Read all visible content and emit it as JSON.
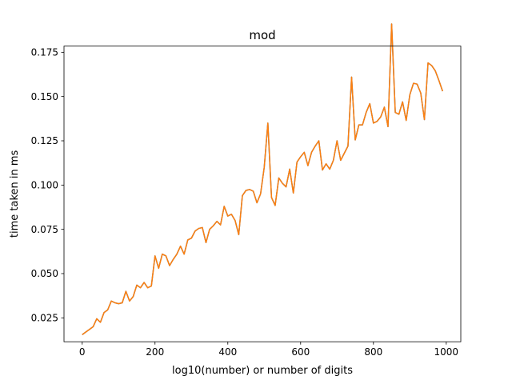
{
  "chart_data": {
    "type": "line",
    "title": "mod",
    "xlabel": "log10(number) or number of digits",
    "ylabel": "time taken in ms",
    "xlim": [
      -50,
      1040
    ],
    "ylim": [
      0.0115,
      0.1785
    ],
    "xticks": [
      0,
      200,
      400,
      600,
      800,
      1000
    ],
    "yticks": [
      0.025,
      0.05,
      0.075,
      0.1,
      0.125,
      0.15,
      0.175
    ],
    "xtick_labels": [
      "0",
      "200",
      "400",
      "600",
      "800",
      "1000"
    ],
    "ytick_labels": [
      "0.025",
      "0.050",
      "0.075",
      "0.100",
      "0.125",
      "0.150",
      "0.175"
    ],
    "grid": false,
    "series": [
      {
        "color": "#1f77b4",
        "x": [
          0,
          10,
          20,
          30,
          40,
          50,
          60,
          70,
          80,
          90,
          100,
          110,
          120,
          130,
          140,
          150,
          160,
          170,
          180,
          190,
          200,
          210,
          220,
          230,
          240,
          250,
          260,
          270,
          280,
          290,
          300,
          310,
          320,
          330,
          340,
          350,
          360,
          370,
          380,
          390,
          400,
          410,
          420,
          430,
          440,
          450,
          460,
          470,
          480,
          490,
          500,
          510,
          520,
          530,
          540,
          550,
          560,
          570,
          580,
          590,
          600,
          610,
          620,
          630,
          640,
          650,
          660,
          670,
          680,
          690,
          700,
          710,
          720,
          730,
          740,
          750,
          760,
          770,
          780,
          790,
          800,
          810,
          820,
          830,
          840,
          850,
          860,
          870,
          880,
          890,
          900,
          910,
          920,
          930,
          940,
          950,
          960,
          970,
          980,
          990
        ],
        "y": [
          0.0155,
          0.017,
          0.0185,
          0.02,
          0.0245,
          0.0225,
          0.028,
          0.0295,
          0.0345,
          0.0335,
          0.033,
          0.0335,
          0.04,
          0.0345,
          0.037,
          0.0435,
          0.042,
          0.045,
          0.042,
          0.043,
          0.06,
          0.053,
          0.061,
          0.06,
          0.0545,
          0.058,
          0.061,
          0.0655,
          0.061,
          0.069,
          0.07,
          0.074,
          0.0755,
          0.076,
          0.0675,
          0.075,
          0.077,
          0.0795,
          0.0775,
          0.088,
          0.0825,
          0.0835,
          0.08,
          0.072,
          0.094,
          0.097,
          0.0975,
          0.0965,
          0.09,
          0.095,
          0.11,
          0.135,
          0.093,
          0.0885,
          0.104,
          0.101,
          0.099,
          0.109,
          0.0955,
          0.113,
          0.116,
          0.1185,
          0.111,
          0.1185,
          0.122,
          0.125,
          0.1085,
          0.112,
          0.109,
          0.114,
          0.125,
          0.114,
          0.118,
          0.122,
          0.161,
          0.1255,
          0.134,
          0.134,
          0.141,
          0.146,
          0.135,
          0.136,
          0.1385,
          0.144,
          0.133,
          0.191,
          0.141,
          0.14,
          0.147,
          0.1365,
          0.151,
          0.1575,
          0.157,
          0.152,
          0.137,
          0.169,
          0.1675,
          0.1645,
          0.159,
          0.153
        ]
      },
      {
        "color": "#ff7f0e",
        "x": [
          0,
          10,
          20,
          30,
          40,
          50,
          60,
          70,
          80,
          90,
          100,
          110,
          120,
          130,
          140,
          150,
          160,
          170,
          180,
          190,
          200,
          210,
          220,
          230,
          240,
          250,
          260,
          270,
          280,
          290,
          300,
          310,
          320,
          330,
          340,
          350,
          360,
          370,
          380,
          390,
          400,
          410,
          420,
          430,
          440,
          450,
          460,
          470,
          480,
          490,
          500,
          510,
          520,
          530,
          540,
          550,
          560,
          570,
          580,
          590,
          600,
          610,
          620,
          630,
          640,
          650,
          660,
          670,
          680,
          690,
          700,
          710,
          720,
          730,
          740,
          750,
          760,
          770,
          780,
          790,
          800,
          810,
          820,
          830,
          840,
          850,
          860,
          870,
          880,
          890,
          900,
          910,
          920,
          930,
          940,
          950,
          960,
          970,
          980,
          990
        ],
        "y": [
          0.0155,
          0.017,
          0.0185,
          0.02,
          0.0245,
          0.0225,
          0.028,
          0.0295,
          0.0345,
          0.0335,
          0.033,
          0.0335,
          0.04,
          0.0345,
          0.037,
          0.0435,
          0.042,
          0.045,
          0.042,
          0.043,
          0.06,
          0.053,
          0.061,
          0.06,
          0.0545,
          0.058,
          0.061,
          0.0655,
          0.061,
          0.069,
          0.07,
          0.074,
          0.0755,
          0.076,
          0.0675,
          0.075,
          0.077,
          0.0795,
          0.0775,
          0.088,
          0.0825,
          0.0835,
          0.08,
          0.072,
          0.094,
          0.097,
          0.0975,
          0.0965,
          0.09,
          0.095,
          0.11,
          0.135,
          0.093,
          0.0885,
          0.104,
          0.101,
          0.099,
          0.109,
          0.0955,
          0.113,
          0.116,
          0.1185,
          0.111,
          0.1185,
          0.122,
          0.125,
          0.1085,
          0.112,
          0.109,
          0.114,
          0.125,
          0.114,
          0.118,
          0.122,
          0.161,
          0.1255,
          0.134,
          0.134,
          0.141,
          0.146,
          0.135,
          0.136,
          0.1385,
          0.144,
          0.133,
          0.191,
          0.141,
          0.14,
          0.147,
          0.1365,
          0.151,
          0.1575,
          0.157,
          0.152,
          0.137,
          0.169,
          0.1675,
          0.1645,
          0.159,
          0.153
        ]
      }
    ]
  }
}
